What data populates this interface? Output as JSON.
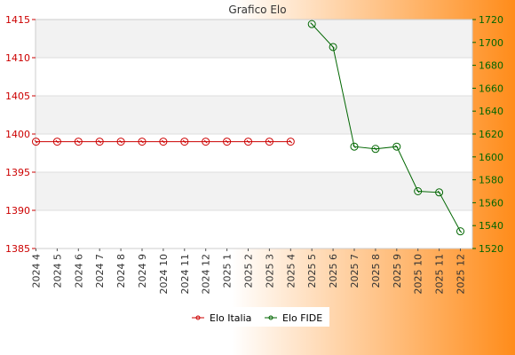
{
  "chart_data": {
    "type": "line",
    "title": "Grafico Elo",
    "categories": [
      "2024 4",
      "2024 5",
      "2024 6",
      "2024 7",
      "2024 8",
      "2024 9",
      "2024 10",
      "2024 11",
      "2024 12",
      "2025 1",
      "2025 2",
      "2025 3",
      "2025 4",
      "2025 5",
      "2025 6",
      "2025 7",
      "2025 8",
      "2025 9",
      "2025 10",
      "2025 11",
      "2025 12"
    ],
    "y_left": {
      "min": 1385,
      "max": 1415,
      "ticks": [
        1385,
        1390,
        1395,
        1400,
        1405,
        1410,
        1415
      ]
    },
    "y_right": {
      "min": 1520,
      "max": 1720,
      "ticks": [
        1520,
        1540,
        1560,
        1580,
        1600,
        1620,
        1640,
        1660,
        1680,
        1700,
        1720
      ]
    },
    "grid": true,
    "legend_position": "bottom",
    "series": [
      {
        "name": "Elo Italia",
        "axis": "left",
        "color": "#cc0000",
        "values": [
          1399,
          1399,
          1399,
          1399,
          1399,
          1399,
          1399,
          1399,
          1399,
          1399,
          1399,
          1399,
          1399,
          null,
          null,
          null,
          null,
          null,
          null,
          null,
          null
        ]
      },
      {
        "name": "Elo FIDE",
        "axis": "right",
        "color": "#006600",
        "values": [
          null,
          null,
          null,
          null,
          null,
          null,
          null,
          null,
          null,
          null,
          null,
          null,
          null,
          1716,
          1696,
          1609,
          1607,
          1609,
          1570,
          1569,
          1535
        ]
      }
    ]
  }
}
